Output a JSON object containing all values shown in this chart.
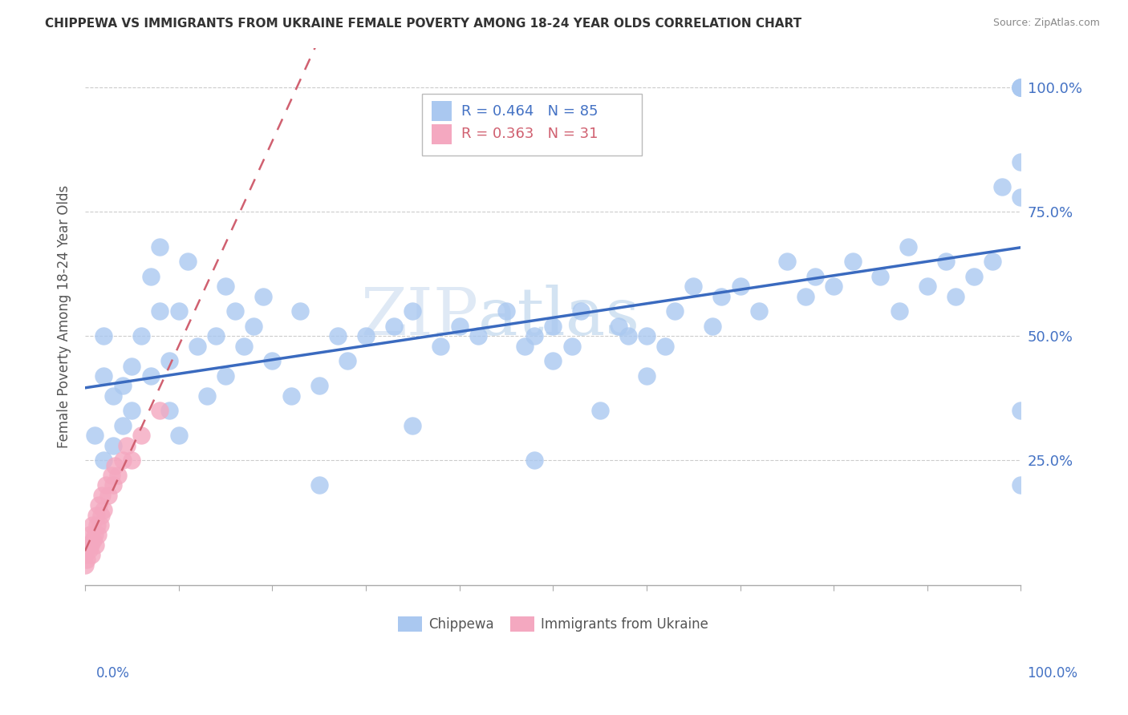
{
  "title": "CHIPPEWA VS IMMIGRANTS FROM UKRAINE FEMALE POVERTY AMONG 18-24 YEAR OLDS CORRELATION CHART",
  "source": "Source: ZipAtlas.com",
  "ylabel": "Female Poverty Among 18-24 Year Olds",
  "legend1_label": "R = 0.464   N = 85",
  "legend2_label": "R = 0.363   N = 31",
  "legend1_color": "#aac8f0",
  "legend2_color": "#f4a8c0",
  "scatter1_color": "#aac8f0",
  "scatter2_color": "#f4a8c0",
  "line1_color": "#3a6abf",
  "line2_color": "#d06070",
  "watermark_zip": "ZIP",
  "watermark_atlas": "atlas",
  "ytick_labels": [
    "25.0%",
    "50.0%",
    "75.0%",
    "100.0%"
  ],
  "ytick_positions": [
    0.25,
    0.5,
    0.75,
    1.0
  ],
  "chippewa_x": [
    0.01,
    0.02,
    0.02,
    0.02,
    0.03,
    0.03,
    0.04,
    0.04,
    0.05,
    0.05,
    0.06,
    0.07,
    0.07,
    0.08,
    0.08,
    0.09,
    0.09,
    0.1,
    0.1,
    0.11,
    0.12,
    0.13,
    0.14,
    0.15,
    0.15,
    0.16,
    0.17,
    0.18,
    0.19,
    0.2,
    0.22,
    0.23,
    0.25,
    0.27,
    0.28,
    0.3,
    0.33,
    0.35,
    0.38,
    0.4,
    0.42,
    0.45,
    0.47,
    0.48,
    0.5,
    0.5,
    0.52,
    0.53,
    0.55,
    0.57,
    0.58,
    0.6,
    0.62,
    0.63,
    0.65,
    0.67,
    0.68,
    0.7,
    0.72,
    0.75,
    0.77,
    0.8,
    0.82,
    0.85,
    0.87,
    0.88,
    0.9,
    0.92,
    0.93,
    0.95,
    0.97,
    0.98,
    1.0,
    1.0,
    1.0,
    1.0,
    1.0,
    1.0,
    1.0,
    1.0,
    0.25,
    0.48,
    0.6,
    0.35,
    0.78
  ],
  "chippewa_y": [
    0.3,
    0.42,
    0.25,
    0.5,
    0.28,
    0.38,
    0.32,
    0.4,
    0.35,
    0.44,
    0.5,
    0.42,
    0.62,
    0.55,
    0.68,
    0.35,
    0.45,
    0.3,
    0.55,
    0.65,
    0.48,
    0.38,
    0.5,
    0.42,
    0.6,
    0.55,
    0.48,
    0.52,
    0.58,
    0.45,
    0.38,
    0.55,
    0.4,
    0.5,
    0.45,
    0.5,
    0.52,
    0.55,
    0.48,
    0.52,
    0.5,
    0.55,
    0.48,
    0.5,
    0.45,
    0.52,
    0.48,
    0.55,
    0.35,
    0.52,
    0.5,
    0.5,
    0.48,
    0.55,
    0.6,
    0.52,
    0.58,
    0.6,
    0.55,
    0.65,
    0.58,
    0.6,
    0.65,
    0.62,
    0.55,
    0.68,
    0.6,
    0.65,
    0.58,
    0.62,
    0.65,
    0.8,
    1.0,
    1.0,
    1.0,
    1.0,
    0.85,
    0.78,
    0.2,
    0.35,
    0.2,
    0.25,
    0.42,
    0.32,
    0.62
  ],
  "ukraine_x": [
    0.0,
    0.0,
    0.002,
    0.003,
    0.004,
    0.005,
    0.006,
    0.007,
    0.008,
    0.009,
    0.01,
    0.011,
    0.012,
    0.013,
    0.014,
    0.015,
    0.016,
    0.017,
    0.018,
    0.02,
    0.022,
    0.025,
    0.028,
    0.03,
    0.032,
    0.035,
    0.04,
    0.045,
    0.05,
    0.06,
    0.08
  ],
  "ukraine_y": [
    0.04,
    0.06,
    0.05,
    0.08,
    0.07,
    0.1,
    0.08,
    0.06,
    0.12,
    0.09,
    0.1,
    0.08,
    0.14,
    0.12,
    0.1,
    0.16,
    0.12,
    0.14,
    0.18,
    0.15,
    0.2,
    0.18,
    0.22,
    0.2,
    0.24,
    0.22,
    0.25,
    0.28,
    0.25,
    0.3,
    0.35
  ]
}
